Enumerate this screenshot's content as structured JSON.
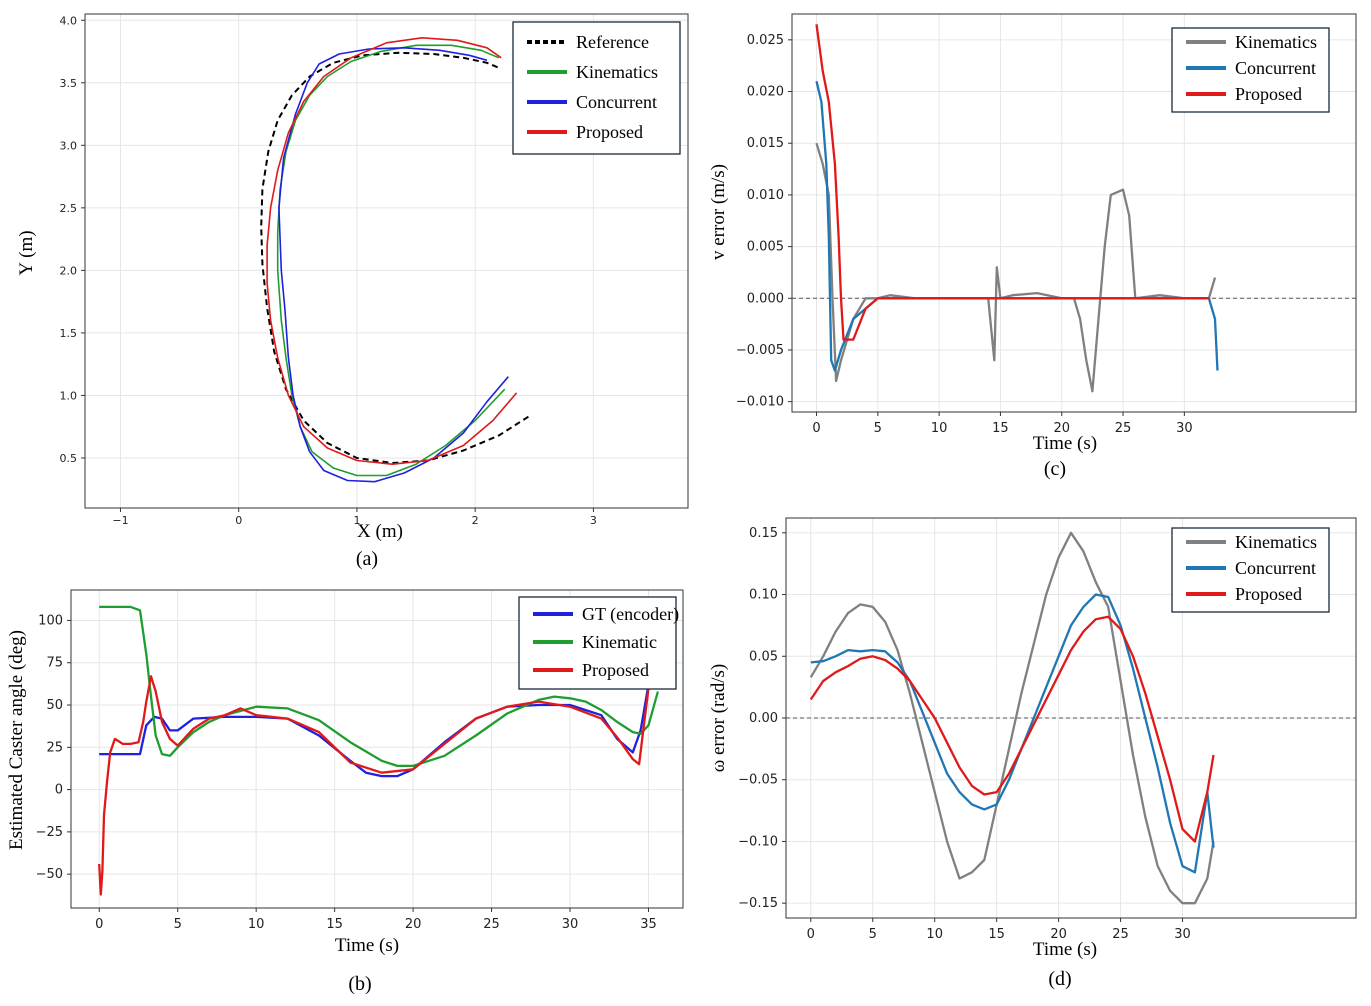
{
  "chart_data": [
    {
      "id": "a",
      "type": "line",
      "caption": "(a)",
      "xlabel": "X (m)",
      "ylabel": "Y (m)",
      "xlim": [
        -1.3,
        3.8
      ],
      "ylim": [
        0.1,
        4.05
      ],
      "xticks": [
        "−1",
        "0",
        "1",
        "2",
        "3"
      ],
      "yticks": [
        "0.5",
        "1.0",
        "1.5",
        "2.0",
        "2.5",
        "3.0",
        "3.5",
        "4.0"
      ],
      "grid": true,
      "legend_position": "top-right",
      "series": [
        {
          "name": "Reference",
          "color": "#000000",
          "dash": true,
          "x": [
            2.45,
            2.2,
            1.9,
            1.6,
            1.3,
            1.0,
            0.75,
            0.55,
            0.4,
            0.3,
            0.24,
            0.2,
            0.19,
            0.2,
            0.25,
            0.33,
            0.45,
            0.6,
            0.8,
            1.05,
            1.35,
            1.65,
            1.9,
            2.1,
            2.2
          ],
          "y": [
            0.83,
            0.68,
            0.56,
            0.48,
            0.46,
            0.5,
            0.62,
            0.8,
            1.05,
            1.35,
            1.7,
            2.05,
            2.35,
            2.65,
            2.95,
            3.2,
            3.4,
            3.55,
            3.66,
            3.72,
            3.74,
            3.73,
            3.7,
            3.66,
            3.62
          ]
        },
        {
          "name": "Kinematics",
          "color": "#1f9e2f",
          "dash": false,
          "x": [
            2.25,
            2.0,
            1.75,
            1.5,
            1.25,
            1.0,
            0.8,
            0.62,
            0.52,
            0.45,
            0.4,
            0.36,
            0.33,
            0.33,
            0.35,
            0.4,
            0.48,
            0.6,
            0.75,
            0.95,
            1.2,
            1.5,
            1.8,
            2.05,
            2.2
          ],
          "y": [
            1.05,
            0.8,
            0.6,
            0.45,
            0.36,
            0.36,
            0.42,
            0.55,
            0.75,
            1.0,
            1.3,
            1.6,
            2.0,
            2.3,
            2.65,
            2.95,
            3.2,
            3.4,
            3.55,
            3.67,
            3.75,
            3.8,
            3.8,
            3.76,
            3.7
          ]
        },
        {
          "name": "Concurrent",
          "color": "#2020e0",
          "dash": false,
          "x": [
            2.28,
            2.1,
            1.9,
            1.65,
            1.4,
            1.15,
            0.92,
            0.72,
            0.6,
            0.52,
            0.46,
            0.42,
            0.39,
            0.36,
            0.34,
            0.38,
            0.48,
            0.58,
            0.68,
            0.85,
            1.1,
            1.4,
            1.7,
            1.95,
            2.1
          ],
          "y": [
            1.15,
            0.95,
            0.7,
            0.5,
            0.38,
            0.31,
            0.32,
            0.4,
            0.55,
            0.75,
            1.0,
            1.3,
            1.7,
            2.0,
            2.5,
            2.9,
            3.25,
            3.5,
            3.65,
            3.73,
            3.77,
            3.78,
            3.76,
            3.72,
            3.68
          ]
        },
        {
          "name": "Proposed",
          "color": "#e01a1a",
          "dash": false,
          "x": [
            2.35,
            2.15,
            1.9,
            1.6,
            1.3,
            1.0,
            0.75,
            0.55,
            0.42,
            0.33,
            0.27,
            0.24,
            0.24,
            0.27,
            0.33,
            0.42,
            0.55,
            0.72,
            0.95,
            1.25,
            1.55,
            1.85,
            2.1,
            2.22
          ],
          "y": [
            1.02,
            0.8,
            0.6,
            0.48,
            0.45,
            0.48,
            0.58,
            0.75,
            1.0,
            1.3,
            1.6,
            1.9,
            2.2,
            2.5,
            2.8,
            3.1,
            3.35,
            3.55,
            3.7,
            3.82,
            3.86,
            3.84,
            3.78,
            3.7
          ]
        }
      ]
    },
    {
      "id": "b",
      "type": "line",
      "caption": "(b)",
      "xlabel": "Time (s)",
      "ylabel": "Estimated Caster  angle (deg)",
      "xlim": [
        -1.8,
        37.2
      ],
      "ylim": [
        -70,
        118
      ],
      "xticks": [
        "0",
        "5",
        "10",
        "15",
        "20",
        "25",
        "30",
        "35"
      ],
      "yticks": [
        "−50",
        "−25",
        "0",
        "25",
        "50",
        "75",
        "100"
      ],
      "grid": true,
      "legend_position": "top-right",
      "series": [
        {
          "name": "GT (encoder)",
          "color": "#2020e0",
          "x": [
            0,
            1,
            2,
            2.6,
            3,
            3.5,
            4,
            4.5,
            5,
            6,
            8,
            10,
            12,
            14,
            16,
            17,
            18,
            19,
            20,
            22,
            24,
            26,
            28,
            30,
            32,
            33,
            34,
            34.5,
            35
          ],
          "y": [
            21,
            21,
            21,
            21,
            38,
            43,
            42,
            35,
            35,
            42,
            43,
            43,
            42,
            32,
            17,
            10,
            8,
            8,
            12,
            28,
            42,
            49,
            50,
            50,
            44,
            30,
            22,
            35,
            62
          ]
        },
        {
          "name": "Kinematic",
          "color": "#1f9e2f",
          "x": [
            0,
            1,
            2,
            2.6,
            3,
            3.3,
            3.6,
            4,
            4.5,
            5,
            6,
            7,
            8,
            10,
            12,
            14,
            16,
            18,
            19,
            20,
            22,
            24,
            26,
            28,
            29,
            30,
            31,
            32,
            33,
            34,
            34.5,
            35,
            35.6
          ],
          "y": [
            108,
            108,
            108,
            106,
            80,
            55,
            32,
            21,
            20,
            25,
            34,
            40,
            44,
            49,
            48,
            41,
            28,
            17,
            14,
            14,
            20,
            32,
            45,
            53,
            55,
            54,
            52,
            47,
            40,
            34,
            33,
            38,
            58
          ]
        },
        {
          "name": "Proposed",
          "color": "#e01a1a",
          "x": [
            0,
            0.1,
            0.2,
            0.3,
            0.5,
            0.7,
            1,
            1.5,
            2,
            2.5,
            2.8,
            3,
            3.3,
            3.6,
            4,
            4.5,
            5,
            6,
            7,
            8,
            9,
            10,
            12,
            14,
            16,
            18,
            20,
            22,
            24,
            26,
            28,
            30,
            32,
            33,
            34,
            34.4,
            35
          ],
          "y": [
            -44,
            -62,
            -48,
            -15,
            5,
            22,
            30,
            27,
            27,
            28,
            40,
            52,
            67,
            58,
            40,
            30,
            26,
            36,
            42,
            44,
            48,
            44,
            42,
            34,
            16,
            10,
            12,
            27,
            42,
            49,
            52,
            49,
            42,
            31,
            18,
            15,
            60
          ]
        }
      ]
    },
    {
      "id": "c",
      "type": "line",
      "caption": "(c)",
      "xlabel": "Time (s)",
      "ylabel": "v error (m/s)",
      "xlim": [
        -2,
        44
      ],
      "ylim": [
        -0.011,
        0.0275
      ],
      "xticks": [
        "0",
        "5",
        "10",
        "15",
        "20",
        "25",
        "30"
      ],
      "yticks": [
        "−0.010",
        "−0.005",
        "0.000",
        "0.005",
        "0.010",
        "0.015",
        "0.020",
        "0.025"
      ],
      "grid": true,
      "legend_position": "top-right",
      "series": [
        {
          "name": "Kinematics",
          "color": "#808080",
          "x": [
            0,
            0.5,
            1,
            1.3,
            1.6,
            2,
            2.5,
            3,
            4,
            5,
            6,
            8,
            10,
            12,
            14,
            14.5,
            14.7,
            15,
            16,
            18,
            20,
            21,
            21.5,
            22,
            22.5,
            23,
            23.5,
            24,
            25,
            25.5,
            26,
            28,
            30,
            32,
            32.5
          ],
          "y": [
            0.015,
            0.013,
            0.01,
            0.0,
            -0.008,
            -0.006,
            -0.004,
            -0.002,
            0.0,
            0.0,
            0.0003,
            0.0,
            0.0,
            0.0,
            0.0,
            -0.006,
            0.003,
            0.0,
            0.0003,
            0.0005,
            0.0,
            0.0,
            -0.002,
            -0.006,
            -0.009,
            -0.002,
            0.005,
            0.01,
            0.0105,
            0.008,
            0.0,
            0.0003,
            0.0,
            0.0,
            0.002
          ]
        },
        {
          "name": "Concurrent",
          "color": "#1f77b4",
          "x": [
            0,
            0.4,
            0.8,
            1,
            1.2,
            1.5,
            2,
            3,
            4,
            5,
            6,
            8,
            10,
            12,
            14,
            16,
            18,
            20,
            22,
            24,
            26,
            28,
            30,
            32,
            32.5,
            32.7
          ],
          "y": [
            0.021,
            0.019,
            0.013,
            0.006,
            -0.006,
            -0.007,
            -0.005,
            -0.002,
            -0.001,
            0.0,
            0.0,
            0.0,
            0.0,
            0.0,
            0.0,
            0.0,
            0.0,
            0.0,
            0.0,
            0.0,
            0.0,
            0.0,
            0.0,
            0.0,
            -0.002,
            -0.007
          ]
        },
        {
          "name": "Proposed",
          "color": "#e01a1a",
          "x": [
            0,
            0.5,
            1,
            1.5,
            1.8,
            2,
            2.2,
            3,
            4,
            5,
            6,
            8,
            10,
            12,
            14,
            16,
            18,
            20,
            22,
            24,
            26,
            28,
            30,
            32
          ],
          "y": [
            0.0265,
            0.022,
            0.019,
            0.013,
            0.006,
            0.0,
            -0.004,
            -0.004,
            -0.001,
            0.0,
            0.0,
            0.0,
            0.0,
            0.0,
            0.0,
            0.0,
            0.0,
            0.0,
            0.0,
            0.0,
            0.0,
            0.0,
            0.0,
            0.0
          ]
        }
      ]
    },
    {
      "id": "d",
      "type": "line",
      "caption": "(d)",
      "xlabel": "Time (s)",
      "ylabel": "ω error (rad/s)",
      "xlim": [
        -2,
        44
      ],
      "ylim": [
        -0.162,
        0.162
      ],
      "xticks": [
        "0",
        "5",
        "10",
        "15",
        "20",
        "25",
        "30"
      ],
      "yticks": [
        "−0.15",
        "−0.10",
        "−0.05",
        "0.00",
        "0.05",
        "0.10",
        "0.15"
      ],
      "grid": true,
      "legend_position": "top-right",
      "series": [
        {
          "name": "Kinematics",
          "color": "#808080",
          "x": [
            0,
            1,
            2,
            3,
            4,
            5,
            6,
            7,
            8,
            9,
            10,
            11,
            12,
            13,
            14,
            15,
            16,
            17,
            18,
            19,
            20,
            21,
            22,
            23,
            24,
            25,
            26,
            27,
            28,
            29,
            30,
            31,
            32,
            32.5
          ],
          "y": [
            0.033,
            0.05,
            0.07,
            0.085,
            0.092,
            0.09,
            0.078,
            0.055,
            0.02,
            -0.02,
            -0.06,
            -0.1,
            -0.13,
            -0.125,
            -0.115,
            -0.07,
            -0.025,
            0.02,
            0.06,
            0.1,
            0.13,
            0.15,
            0.135,
            0.11,
            0.09,
            0.03,
            -0.03,
            -0.08,
            -0.12,
            -0.14,
            -0.15,
            -0.15,
            -0.13,
            -0.1
          ]
        },
        {
          "name": "Concurrent",
          "color": "#1f77b4",
          "x": [
            0,
            1,
            2,
            3,
            4,
            5,
            6,
            7,
            8,
            9,
            10,
            11,
            12,
            13,
            14,
            15,
            16,
            17,
            18,
            19,
            20,
            21,
            22,
            23,
            24,
            25,
            26,
            27,
            28,
            29,
            30,
            31,
            32,
            32.5
          ],
          "y": [
            0.045,
            0.046,
            0.05,
            0.055,
            0.054,
            0.055,
            0.054,
            0.045,
            0.03,
            0.005,
            -0.02,
            -0.045,
            -0.06,
            -0.07,
            -0.074,
            -0.07,
            -0.05,
            -0.025,
            0.0,
            0.025,
            0.05,
            0.075,
            0.09,
            0.1,
            0.098,
            0.075,
            0.04,
            0.0,
            -0.04,
            -0.085,
            -0.12,
            -0.125,
            -0.06,
            -0.105
          ]
        },
        {
          "name": "Proposed",
          "color": "#e01a1a",
          "x": [
            0,
            1,
            2,
            3,
            4,
            5,
            6,
            7,
            8,
            9,
            10,
            11,
            12,
            13,
            14,
            15,
            16,
            17,
            18,
            19,
            20,
            21,
            22,
            23,
            24,
            25,
            26,
            27,
            28,
            29,
            30,
            31,
            32,
            32.5
          ],
          "y": [
            0.015,
            0.03,
            0.037,
            0.042,
            0.048,
            0.05,
            0.047,
            0.04,
            0.03,
            0.015,
            0.0,
            -0.02,
            -0.04,
            -0.055,
            -0.062,
            -0.06,
            -0.045,
            -0.025,
            -0.005,
            0.015,
            0.035,
            0.055,
            0.07,
            0.08,
            0.082,
            0.072,
            0.05,
            0.02,
            -0.015,
            -0.05,
            -0.09,
            -0.1,
            -0.06,
            -0.03
          ]
        }
      ]
    }
  ]
}
